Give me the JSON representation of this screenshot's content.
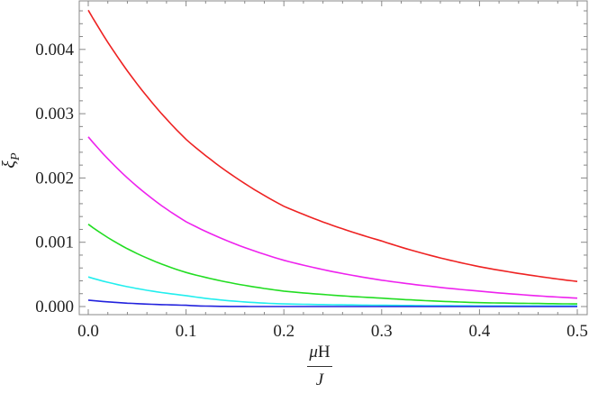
{
  "chart_data": {
    "type": "line",
    "title": "",
    "xlabel": "μH / J",
    "ylabel": "ξ_P",
    "xlim": [
      0,
      0.5
    ],
    "ylim": [
      -5e-05,
      0.00475
    ],
    "grid": false,
    "legend": null,
    "x_ticks": [
      "0.0",
      "0.1",
      "0.2",
      "0.3",
      "0.4",
      "0.5"
    ],
    "y_ticks": [
      "0.000",
      "0.001",
      "0.002",
      "0.003",
      "0.004"
    ],
    "x": [
      0.0,
      0.1,
      0.2,
      0.3,
      0.4,
      0.5
    ],
    "series": [
      {
        "name": "red",
        "color": "#ee2222",
        "values": [
          0.00461,
          0.0026,
          0.00156,
          0.00102,
          0.00062,
          0.00039
        ]
      },
      {
        "name": "magenta",
        "color": "#ee22ee",
        "values": [
          0.00264,
          0.00132,
          0.00072,
          0.00041,
          0.00024,
          0.00013
        ]
      },
      {
        "name": "green",
        "color": "#22dd22",
        "values": [
          0.00128,
          0.00053,
          0.00024,
          0.00013,
          6e-05,
          4e-05
        ]
      },
      {
        "name": "cyan",
        "color": "#22eeee",
        "values": [
          0.00046,
          0.00017,
          4e-05,
          2e-05,
          1e-05,
          1e-05
        ]
      },
      {
        "name": "blue",
        "color": "#2222dd",
        "values": [
          0.0001,
          2e-05,
          0.0,
          0.0,
          0.0,
          0.0
        ]
      }
    ]
  },
  "labels": {
    "y_main": "ξ",
    "y_sub": "P",
    "x_num_mu": "μ",
    "x_num_h": "H",
    "x_den": "J"
  }
}
